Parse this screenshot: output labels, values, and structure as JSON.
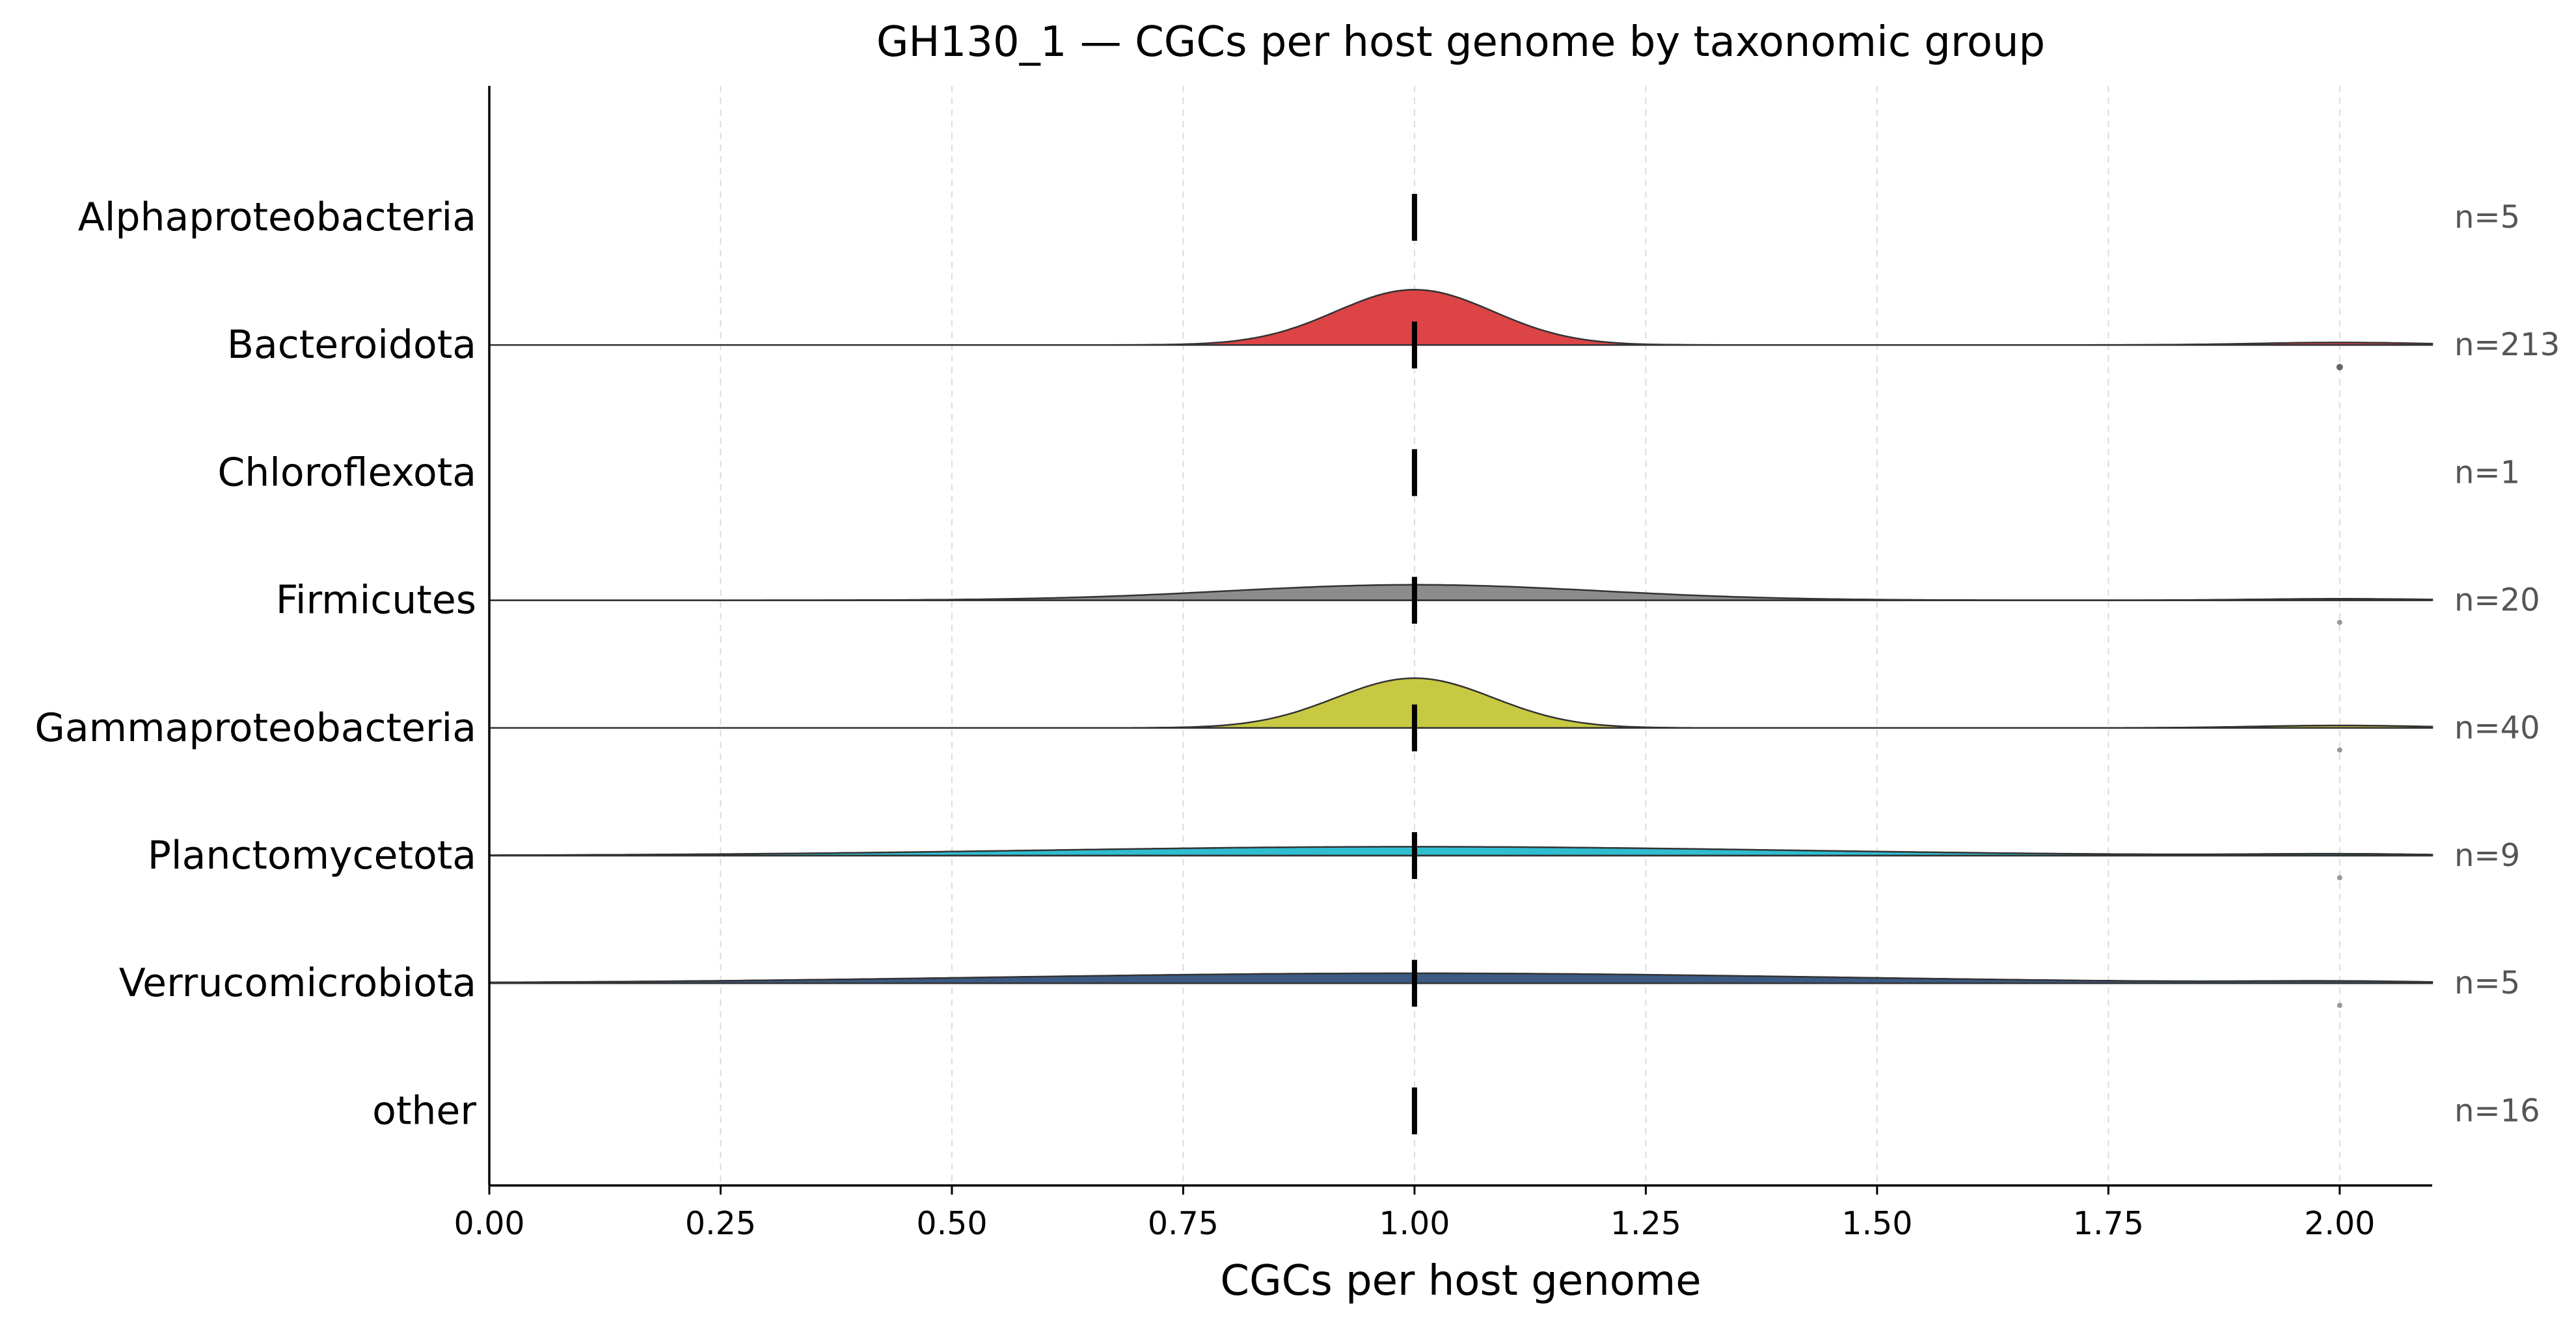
{
  "chart_data": {
    "type": "ridgeline",
    "title": "GH130_1 — CGCs per host genome by taxonomic group",
    "xlabel": "CGCs per host genome",
    "ylabel": "",
    "xlim": [
      0.0,
      2.1
    ],
    "xticks": [
      "0.00",
      "0.25",
      "0.50",
      "0.75",
      "1.00",
      "1.25",
      "1.50",
      "1.75",
      "2.00"
    ],
    "grid": "vertical dashed",
    "groups": [
      {
        "name": "Alphaproteobacteria",
        "n_label": "n=5",
        "n": 5,
        "median": 1.0,
        "color": null,
        "peak": 0.0,
        "sd": 0.1,
        "tail_value": null
      },
      {
        "name": "Bacteroidota",
        "n_label": "n=213",
        "n": 213,
        "median": 1.0,
        "color": "#dc4446",
        "peak": 1.0,
        "sd": 0.085,
        "tail_value": 2.0
      },
      {
        "name": "Chloroflexota",
        "n_label": "n=1",
        "n": 1,
        "median": 1.0,
        "color": null,
        "peak": 0.0,
        "sd": 0.1,
        "tail_value": null
      },
      {
        "name": "Firmicutes",
        "n_label": "n=20",
        "n": 20,
        "median": 1.0,
        "color": "#8c8c8c",
        "peak": 0.28,
        "sd": 0.2,
        "tail_value": 2.0
      },
      {
        "name": "Gammaproteobacteria",
        "n_label": "n=40",
        "n": 40,
        "median": 1.0,
        "color": "#c8c942",
        "peak": 0.9,
        "sd": 0.085,
        "tail_value": 2.0
      },
      {
        "name": "Planctomycetota",
        "n_label": "n=9",
        "n": 9,
        "median": 1.0,
        "color": "#2fbdd0",
        "peak": 0.16,
        "sd": 0.4,
        "tail_value": 2.0
      },
      {
        "name": "Verrucomicrobiota",
        "n_label": "n=5",
        "n": 5,
        "median": 1.0,
        "color": "#3c5a83",
        "peak": 0.18,
        "sd": 0.45,
        "tail_value": 2.0
      },
      {
        "name": "other",
        "n_label": "n=16",
        "n": 16,
        "median": 1.0,
        "color": null,
        "peak": 0.0,
        "sd": 0.1,
        "tail_value": null
      }
    ]
  }
}
